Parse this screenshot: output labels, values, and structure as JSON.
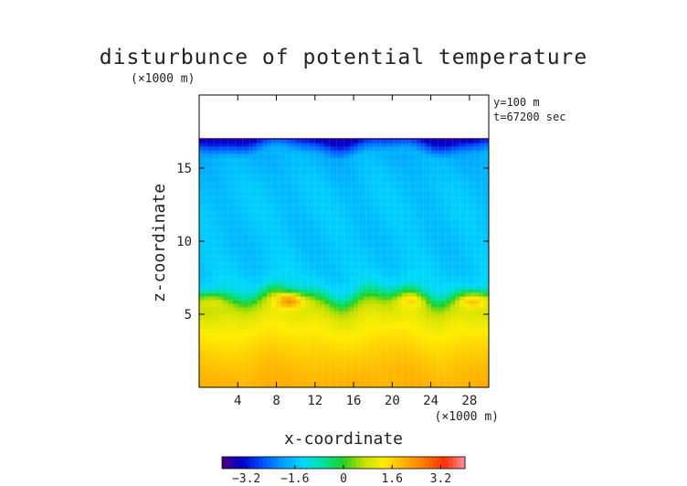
{
  "chart_data": {
    "type": "heatmap",
    "title": "disturbunce of potential temperature",
    "unit_label": "(×1000 m)",
    "xlabel": "x-coordinate",
    "ylabel": "z-coordinate",
    "x_unit_label": "(×1000 m)",
    "info": [
      "y=100 m",
      "t=67200 sec"
    ],
    "xlim": [
      0,
      30
    ],
    "ylim": [
      0,
      20
    ],
    "x_ticks": [
      4,
      8,
      12,
      16,
      20,
      24,
      28
    ],
    "y_ticks": [
      5,
      10,
      15
    ],
    "data_top": 17,
    "colorbar": {
      "range": [
        -4.0,
        4.0
      ],
      "ticks": [
        "−3.2",
        "−1.6",
        "0",
        "1.6",
        "3.2"
      ],
      "tick_values": [
        -3.2,
        -1.6,
        0,
        1.6,
        3.2
      ],
      "colors": [
        "#4a0080",
        "#0000cc",
        "#0050ff",
        "#00a0ff",
        "#00d8ff",
        "#00e0a0",
        "#20d020",
        "#c8e000",
        "#ffee00",
        "#ffb000",
        "#ff7800",
        "#ff3000",
        "#ff90a0"
      ]
    },
    "profile": [
      {
        "z": 0,
        "value": 2.0
      },
      {
        "z": 1,
        "value": 1.9
      },
      {
        "z": 2,
        "value": 1.75
      },
      {
        "z": 3,
        "value": 1.55
      },
      {
        "z": 4,
        "value": 1.3
      },
      {
        "z": 5,
        "value": 0.95
      },
      {
        "z": 5.8,
        "value": 0.4
      },
      {
        "z": 6.3,
        "value": -0.4
      },
      {
        "z": 7,
        "value": -1.25
      },
      {
        "z": 8,
        "value": -1.5
      },
      {
        "z": 10,
        "value": -1.6
      },
      {
        "z": 12,
        "value": -1.55
      },
      {
        "z": 14,
        "value": -1.6
      },
      {
        "z": 16,
        "value": -1.8
      },
      {
        "z": 16.6,
        "value": -2.6
      },
      {
        "z": 17,
        "value": -3.4
      }
    ],
    "warm_blobs": [
      {
        "x": 9.5,
        "z": 6.0,
        "value": 2.0
      },
      {
        "x": 28.5,
        "z": 6.0,
        "value": 1.8
      },
      {
        "x": 1.0,
        "z": 6.0,
        "value": 1.2
      },
      {
        "x": 22.0,
        "z": 6.0,
        "value": 1.0
      }
    ]
  }
}
